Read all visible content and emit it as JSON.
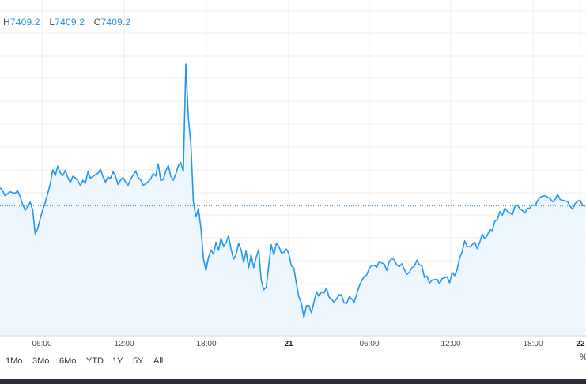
{
  "legend": {
    "h_label": "H",
    "h_value": "7409.2",
    "l_label": "L",
    "l_value": "7409.2",
    "c_label": "C",
    "c_value": "7409.2"
  },
  "ranges": [
    "1Mo",
    "3Mo",
    "6Mo",
    "YTD",
    "1Y",
    "5Y",
    "All"
  ],
  "percent_label": "%",
  "colors": {
    "line": "#2196f3",
    "area": "#eef6fd",
    "grid": "#ececec",
    "dotted": "#3a8fd4"
  },
  "chart_data": {
    "type": "area",
    "x_tick_labels": [
      "06:00",
      "12:00",
      "18:00",
      "21",
      "06:00",
      "12:00",
      "18:00",
      "22"
    ],
    "reference_value": 7409.2,
    "grid": true,
    "series": [
      {
        "values": [
          7461,
          7453,
          7438,
          7444,
          7449,
          7447,
          7445,
          7452,
          7436,
          7414,
          7396,
          7407,
          7420,
          7398,
          7330,
          7344,
          7372,
          7398,
          7419,
          7444,
          7470,
          7512,
          7495,
          7522,
          7503,
          7495,
          7510,
          7490,
          7475,
          7493,
          7489,
          7481,
          7467,
          7482,
          7474,
          7506,
          7488,
          7493,
          7498,
          7502,
          7513,
          7492,
          7477,
          7491,
          7487,
          7506,
          7494,
          7470,
          7482,
          7490,
          7477,
          7468,
          7485,
          7497,
          7508,
          7490,
          7483,
          7468,
          7472,
          7478,
          7486,
          7501,
          7494,
          7529,
          7481,
          7484,
          7508,
          7524,
          7493,
          7482,
          7500,
          7523,
          7532,
          7507,
          7812,
          7659,
          7584,
          7422,
          7378,
          7402,
          7345,
          7260,
          7226,
          7263,
          7284,
          7272,
          7306,
          7283,
          7317,
          7295,
          7304,
          7324,
          7286,
          7258,
          7271,
          7303,
          7284,
          7249,
          7281,
          7234,
          7270,
          7234,
          7263,
          7285,
          7198,
          7171,
          7179,
          7240,
          7299,
          7270,
          7303,
          7295,
          7276,
          7277,
          7287,
          7274,
          7239,
          7233,
          7188,
          7151,
          7133,
          7092,
          7126,
          7126,
          7106,
          7136,
          7166,
          7152,
          7165,
          7162,
          7176,
          7150,
          7144,
          7136,
          7145,
          7157,
          7156,
          7134,
          7132,
          7151,
          7145,
          7136,
          7158,
          7182,
          7196,
          7209,
          7213,
          7232,
          7240,
          7240,
          7235,
          7252,
          7247,
          7244,
          7226,
          7252,
          7260,
          7256,
          7241,
          7237,
          7245,
          7228,
          7215,
          7221,
          7234,
          7238,
          7255,
          7242,
          7238,
          7206,
          7210,
          7190,
          7198,
          7200,
          7201,
          7188,
          7203,
          7205,
          7208,
          7191,
          7220,
          7211,
          7228,
          7262,
          7279,
          7310,
          7294,
          7293,
          7299,
          7306,
          7288,
          7306,
          7328,
          7316,
          7325,
          7342,
          7339,
          7366,
          7369,
          7393,
          7383,
          7403,
          7394,
          7390,
          7384,
          7408,
          7412,
          7401,
          7396,
          7390,
          7402,
          7403,
          7412,
          7409,
          7424,
          7433,
          7437,
          7438,
          7434,
          7430,
          7421,
          7427,
          7442,
          7428,
          7425,
          7424,
          7421,
          7408,
          7400,
          7416,
          7423,
          7425,
          7410,
          7409
        ]
      }
    ]
  }
}
